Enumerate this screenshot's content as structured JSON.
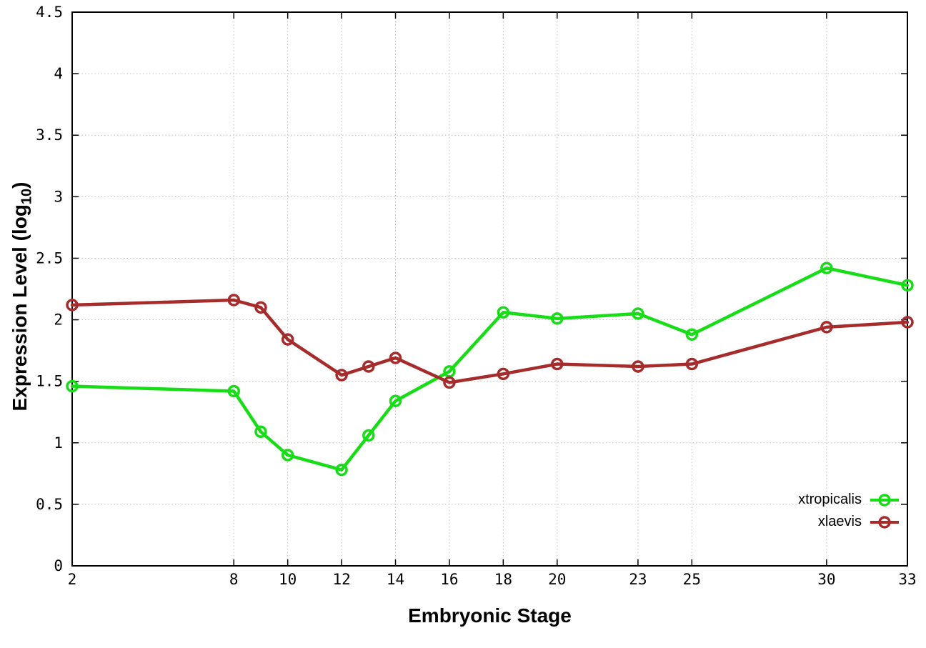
{
  "figure": {
    "xlabel": "Embryonic Stage",
    "ylabel_prefix": "Expression Level (log",
    "ylabel_sub": "10",
    "ylabel_suffix": ")"
  },
  "chart_data": {
    "type": "line",
    "title": "",
    "xlabel": "Embryonic Stage",
    "ylabel": "Expression Level (log10)",
    "x": [
      2,
      8,
      9,
      10,
      12,
      13,
      14,
      16,
      18,
      20,
      23,
      25,
      30,
      33
    ],
    "series": [
      {
        "name": "xtropicalis",
        "color": "#17dd17",
        "values": [
          1.46,
          1.42,
          1.09,
          0.9,
          0.78,
          1.06,
          1.34,
          1.58,
          2.06,
          2.01,
          2.05,
          1.88,
          2.42,
          2.28
        ]
      },
      {
        "name": "xlaevis",
        "color": "#a62b2b",
        "values": [
          2.12,
          2.16,
          2.1,
          1.84,
          1.55,
          1.62,
          1.69,
          1.49,
          1.56,
          1.64,
          1.62,
          1.64,
          1.94,
          1.98
        ]
      }
    ],
    "xticks": [
      "2",
      "8",
      "10",
      "12",
      "14",
      "16",
      "18",
      "20",
      "23",
      "25",
      "30",
      "33"
    ],
    "xtick_values": [
      2,
      8,
      10,
      12,
      14,
      16,
      18,
      20,
      23,
      25,
      30,
      33
    ],
    "yticks": [
      "0",
      "0.5",
      "1",
      "1.5",
      "2",
      "2.5",
      "3",
      "3.5",
      "4",
      "4.5"
    ],
    "ytick_values": [
      0,
      0.5,
      1,
      1.5,
      2,
      2.5,
      3,
      3.5,
      4,
      4.5
    ],
    "xlim": [
      2,
      33
    ],
    "ylim": [
      0,
      4.5
    ],
    "grid": true,
    "legend_position": "inside bottom-right",
    "marker": "open-circle",
    "colors": {
      "grid": "#c0c0c0",
      "axis": "#000000",
      "background": "#ffffff",
      "text": "#000000"
    }
  }
}
